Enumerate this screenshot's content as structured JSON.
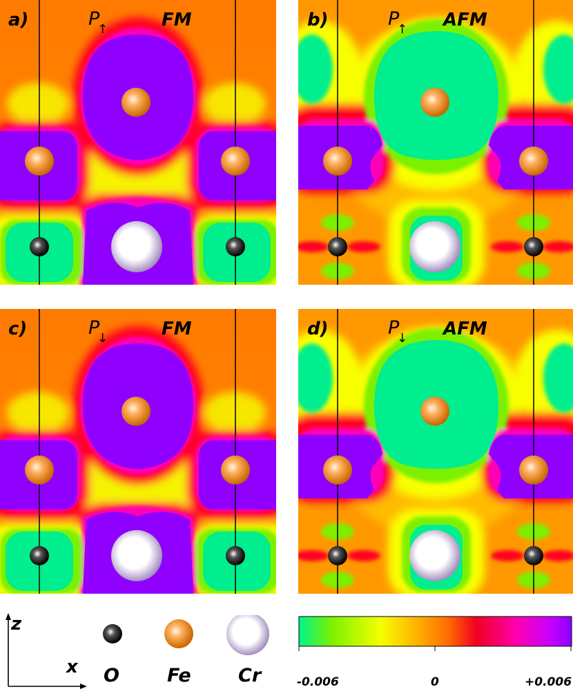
{
  "panels": [
    {
      "id": "a",
      "label": "a)",
      "p": "P",
      "arrow": "↑",
      "state": "FM"
    },
    {
      "id": "b",
      "label": "b)",
      "p": "P",
      "arrow": "↑",
      "state": "AFM"
    },
    {
      "id": "c",
      "label": "c)",
      "p": "P",
      "arrow": "↓",
      "state": "FM"
    },
    {
      "id": "d",
      "label": "d)",
      "p": "P",
      "arrow": "↓",
      "state": "AFM"
    }
  ],
  "axes": {
    "z": "z",
    "x": "x"
  },
  "legend": {
    "o": "O",
    "fe": "Fe",
    "cr": "Cr"
  },
  "colorbar": {
    "min_label": "-0.006",
    "mid_label": "0",
    "max_label": "+0.006",
    "stops": [
      "#00f48c",
      "#7cf000",
      "#f5ff00",
      "#ffa800",
      "#ff6a00",
      "#f00020",
      "#ff00b0",
      "#c800ff",
      "#8a00ff"
    ]
  },
  "colors": {
    "fm_bg": "#ff6e00",
    "purple": "#9000ff",
    "green": "#00ee8e",
    "red": "#ff0028",
    "yellow": "#f8ff00"
  }
}
